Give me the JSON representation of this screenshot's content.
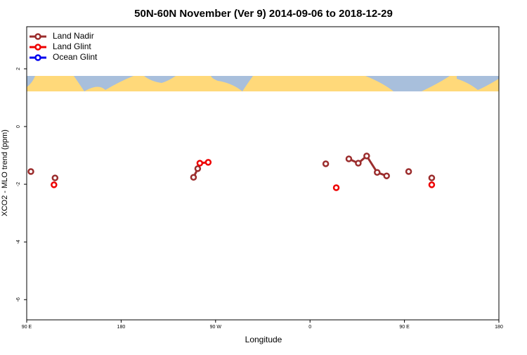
{
  "chart_data": {
    "type": "line",
    "title": "50N-60N November (Ver 9)   2014-09-06 to 2018-12-29",
    "x_label": "Longitude",
    "y_label": "XCO2 - MLO trend (ppm)",
    "xlim": [
      90,
      540
    ],
    "ylim": [
      -6.7,
      3.46
    ],
    "xticks": [
      {
        "value": 90,
        "label": "90 E"
      },
      180,
      {
        "value": 270,
        "label": "90 W"
      },
      {
        "value": 360,
        "label": "0"
      },
      {
        "value": 450,
        "label": "90 E"
      },
      {
        "value": 540,
        "label": "180"
      }
    ],
    "yticks": [
      -6,
      -4,
      -2,
      0,
      2
    ],
    "legend": "top-left",
    "series": [
      {
        "name": "Land Nadir",
        "color": "#9b2d2d",
        "x": [
          94,
          117,
          249,
          253,
          375,
          397,
          406,
          414,
          424,
          433,
          454,
          476
        ],
        "values": [
          -1.56,
          -1.78,
          -1.76,
          -1.46,
          -1.29,
          -1.12,
          -1.27,
          -1.02,
          -1.59,
          -1.71,
          -1.56,
          -1.78
        ]
      },
      {
        "name": "Land Glint",
        "color": "#ee0000",
        "x": [
          116,
          255,
          263,
          385,
          476
        ],
        "values": [
          -2.02,
          -1.27,
          -1.24,
          -2.12,
          -2.02
        ]
      },
      {
        "name": "Ocean Glint",
        "color": "#0000ee",
        "x": [],
        "values": []
      }
    ]
  }
}
